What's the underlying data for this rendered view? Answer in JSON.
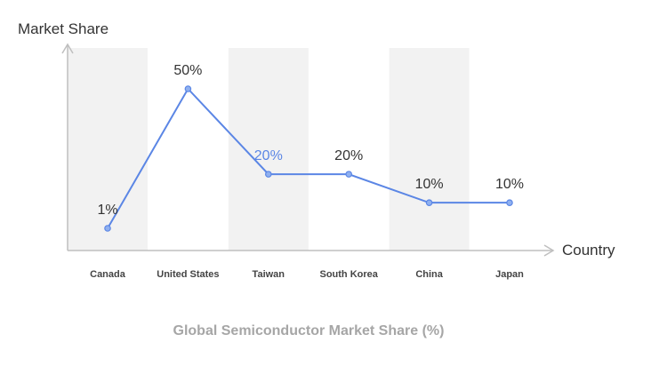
{
  "chart_data": {
    "type": "line",
    "title": "Global Semiconductor Market Share (%)",
    "xlabel": "Country",
    "ylabel": "Market Share",
    "categories": [
      "Canada",
      "United States",
      "Taiwan",
      "South Korea",
      "China",
      "Japan"
    ],
    "series": [
      {
        "values": [
          1,
          50,
          20,
          20,
          10,
          10
        ]
      }
    ],
    "data_labels": [
      "1%",
      "50%",
      "20%",
      "20%",
      "10%",
      "10%"
    ],
    "highlighted_category": "Taiwan",
    "ylim": [
      -5,
      55
    ],
    "grid": false,
    "legend": "none",
    "colors": {
      "line": "#5b86e5",
      "band": "#f2f2f2",
      "axis": "#bfbfbf",
      "label": "#333333",
      "highlight_label": "#5b86e5",
      "title": "#a6a6a6"
    }
  }
}
